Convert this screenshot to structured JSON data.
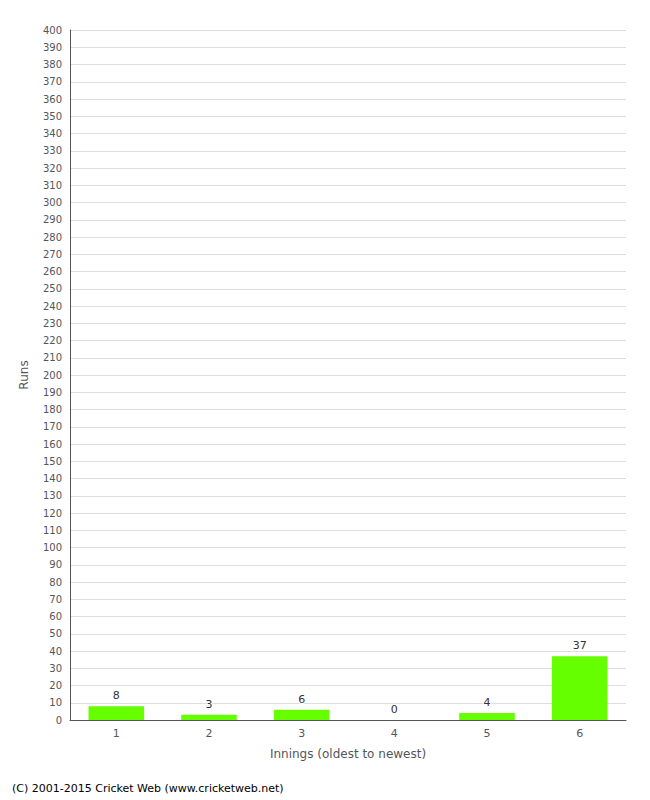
{
  "chart_data": {
    "type": "bar",
    "categories": [
      "1",
      "2",
      "3",
      "4",
      "5",
      "6"
    ],
    "values": [
      8,
      3,
      6,
      0,
      4,
      37
    ],
    "color": "#66ff00",
    "xlabel": "Innings (oldest to newest)",
    "ylabel": "Runs",
    "ylim": [
      0,
      400
    ],
    "yticks": [
      0,
      10,
      20,
      30,
      40,
      50,
      60,
      70,
      80,
      90,
      100,
      110,
      120,
      130,
      140,
      150,
      160,
      170,
      180,
      190,
      200,
      210,
      220,
      230,
      240,
      250,
      260,
      270,
      280,
      290,
      300,
      310,
      320,
      330,
      340,
      350,
      360,
      370,
      380,
      390,
      400
    ],
    "grid": true,
    "data_labels": true,
    "footer": "(C) 2001-2015 Cricket Web (www.cricketweb.net)"
  }
}
